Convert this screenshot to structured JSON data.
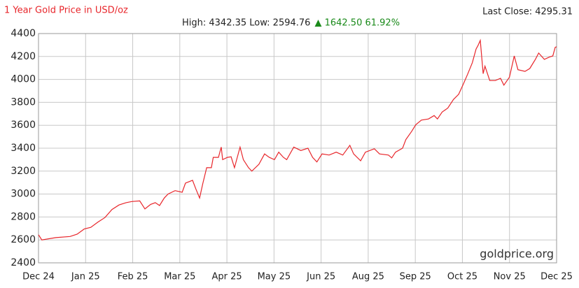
{
  "chart_data": {
    "type": "line",
    "title": "1 Year Gold Price in USD/oz",
    "stats": "High: 4342.35 Low: 2594.76",
    "change": "▲ 1642.50 61.92%",
    "last_close": "Last Close: 4295.31",
    "watermark": "goldprice.org",
    "grid": true,
    "xlim": [
      0,
      11
    ],
    "ylim": [
      2400,
      4400
    ],
    "yticks": [
      2400,
      2600,
      2800,
      3000,
      3200,
      3400,
      3600,
      3800,
      4000,
      4200,
      4400
    ],
    "xticks": [
      {
        "value": 0,
        "label": "Dec 24"
      },
      {
        "value": 1,
        "label": "Jan 25"
      },
      {
        "value": 2,
        "label": "Feb 25"
      },
      {
        "value": 3,
        "label": "Mar 25"
      },
      {
        "value": 4,
        "label": "Apr 25"
      },
      {
        "value": 5,
        "label": "May 25"
      },
      {
        "value": 6,
        "label": "Jun 25"
      },
      {
        "value": 7,
        "label": "Aug 25"
      },
      {
        "value": 8,
        "label": "Sep 25"
      },
      {
        "value": 9,
        "label": "Oct 25"
      },
      {
        "value": 10,
        "label": "Nov 25"
      },
      {
        "value": 11,
        "label": "Dec 25"
      }
    ],
    "series": [
      {
        "color": "#e8262b",
        "x": [
          0,
          0.07,
          0.37,
          0.67,
          0.82,
          0.97,
          1.11,
          1.26,
          1.41,
          1.56,
          1.71,
          1.86,
          1.98,
          2.15,
          2.26,
          2.38,
          2.48,
          2.57,
          2.67,
          2.75,
          2.9,
          3.05,
          3.12,
          3.27,
          3.34,
          3.42,
          3.49,
          3.57,
          3.67,
          3.71,
          3.82,
          3.88,
          3.91,
          4.01,
          4.09,
          4.16,
          4.28,
          4.35,
          4.46,
          4.53,
          4.68,
          4.8,
          4.9,
          5.01,
          5.1,
          5.2,
          5.27,
          5.42,
          5.57,
          5.72,
          5.82,
          5.91,
          6.02,
          6.17,
          6.32,
          6.46,
          6.61,
          6.69,
          6.84,
          6.94,
          7.13,
          7.24,
          7.43,
          7.5,
          7.58,
          7.73,
          7.8,
          7.92,
          8.01,
          8.13,
          8.28,
          8.4,
          8.47,
          8.57,
          8.69,
          8.81,
          8.92,
          9.02,
          9.11,
          9.21,
          9.29,
          9.33,
          9.38,
          9.44,
          9.48,
          9.58,
          9.7,
          9.81,
          9.88,
          10.0,
          10.1,
          10.18,
          10.33,
          10.43,
          10.55,
          10.62,
          10.74,
          10.85,
          10.92,
          10.97,
          11
        ],
        "values": [
          2645,
          2600,
          2620,
          2630,
          2650,
          2695,
          2710,
          2755,
          2795,
          2865,
          2905,
          2925,
          2935,
          2940,
          2870,
          2910,
          2925,
          2900,
          2965,
          3000,
          3030,
          3015,
          3095,
          3120,
          3045,
          2965,
          3095,
          3230,
          3230,
          3320,
          3320,
          3410,
          3300,
          3320,
          3325,
          3230,
          3410,
          3300,
          3230,
          3200,
          3260,
          3350,
          3320,
          3300,
          3365,
          3320,
          3300,
          3410,
          3380,
          3400,
          3320,
          3280,
          3350,
          3340,
          3365,
          3340,
          3425,
          3350,
          3290,
          3365,
          3395,
          3350,
          3340,
          3315,
          3365,
          3400,
          3475,
          3545,
          3605,
          3645,
          3655,
          3685,
          3655,
          3715,
          3750,
          3825,
          3870,
          3960,
          4045,
          4145,
          4265,
          4295,
          4340,
          4050,
          4115,
          3990,
          3990,
          4010,
          3950,
          4020,
          4205,
          4085,
          4070,
          4095,
          4175,
          4230,
          4175,
          4195,
          4205,
          4280,
          4285
        ]
      }
    ]
  }
}
